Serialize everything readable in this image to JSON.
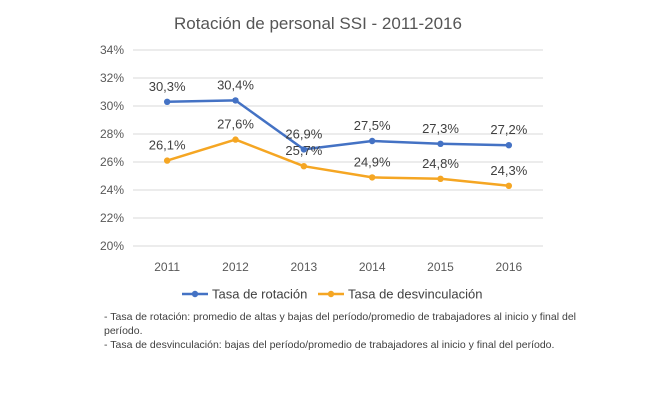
{
  "chart_data": {
    "type": "line",
    "title": "Rotación de personal SSI - 2011-2016",
    "categories": [
      "2011",
      "2012",
      "2013",
      "2014",
      "2015",
      "2016"
    ],
    "yticks": [
      "20%",
      "22%",
      "24%",
      "26%",
      "28%",
      "30%",
      "32%",
      "34%"
    ],
    "ylim": [
      20,
      34
    ],
    "grid": true,
    "legend_position": "bottom",
    "series": [
      {
        "name": "Tasa de rotación",
        "color": "#4472C4",
        "values": [
          30.3,
          30.4,
          26.9,
          27.5,
          27.3,
          27.2
        ],
        "labels": [
          "30,3%",
          "30,4%",
          "26,9%",
          "27,5%",
          "27,3%",
          "27,2%"
        ]
      },
      {
        "name": "Tasa de desvinculación",
        "color": "#F5A623",
        "values": [
          26.1,
          27.6,
          25.7,
          24.9,
          24.8,
          24.3
        ],
        "labels": [
          "26,1%",
          "27,6%",
          "25,7%",
          "24,9%",
          "24,8%",
          "24,3%"
        ]
      }
    ]
  },
  "notes": [
    "- Tasa de rotación: promedio de altas y bajas del período/promedio de trabajadores al inicio y final del período.",
    "- Tasa de desvinculación: bajas del período/promedio de trabajadores al inicio y final del período."
  ]
}
